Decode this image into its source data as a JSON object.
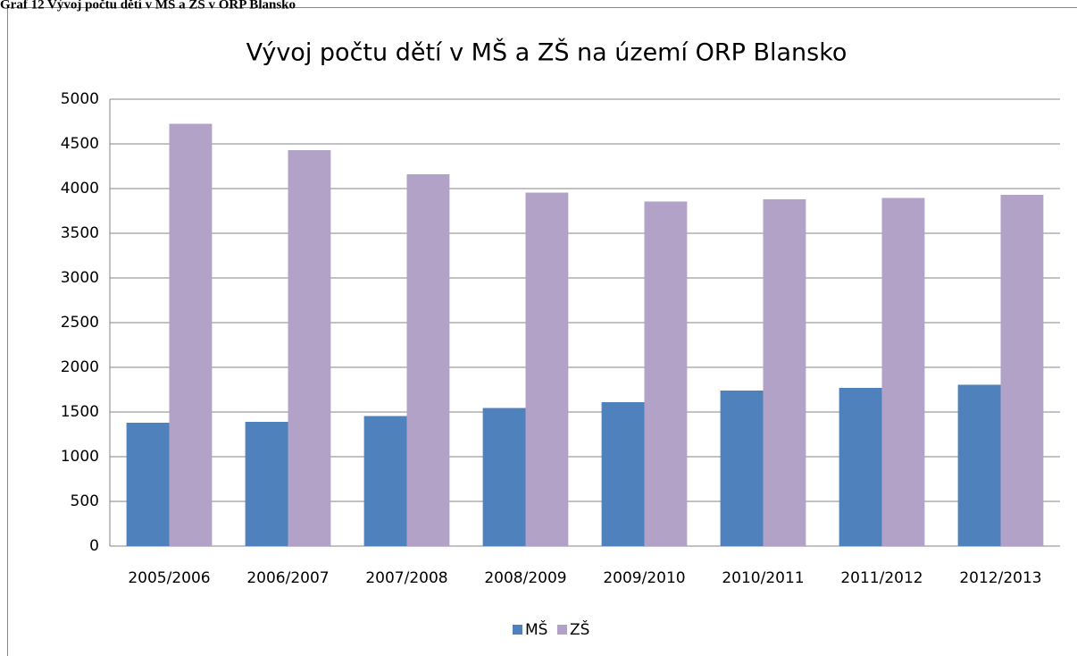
{
  "header": "Graf 12 Vývoj počtu dětí v MŠ a ZŠ v ORP Blansko",
  "chart_data": {
    "type": "bar",
    "title": "Vývoj počtu dětí v MŠ a ZŠ na území ORP Blansko",
    "categories": [
      "2005/2006",
      "2006/2007",
      "2007/2008",
      "2008/2009",
      "2009/2010",
      "2010/2011",
      "2011/2012",
      "2012/2013"
    ],
    "series": [
      {
        "name": "MŠ",
        "color": "#4f81bd",
        "values": [
          1380,
          1390,
          1455,
          1545,
          1610,
          1740,
          1770,
          1805
        ]
      },
      {
        "name": "ZŠ",
        "color": "#b3a2c7",
        "values": [
          4725,
          4430,
          4160,
          3955,
          3855,
          3880,
          3895,
          3930
        ]
      }
    ],
    "ylim": [
      0,
      5000
    ],
    "yticks": [
      0,
      500,
      1000,
      1500,
      2000,
      2500,
      3000,
      3500,
      4000,
      4500,
      5000
    ],
    "grid": true,
    "legend": "bottom"
  }
}
